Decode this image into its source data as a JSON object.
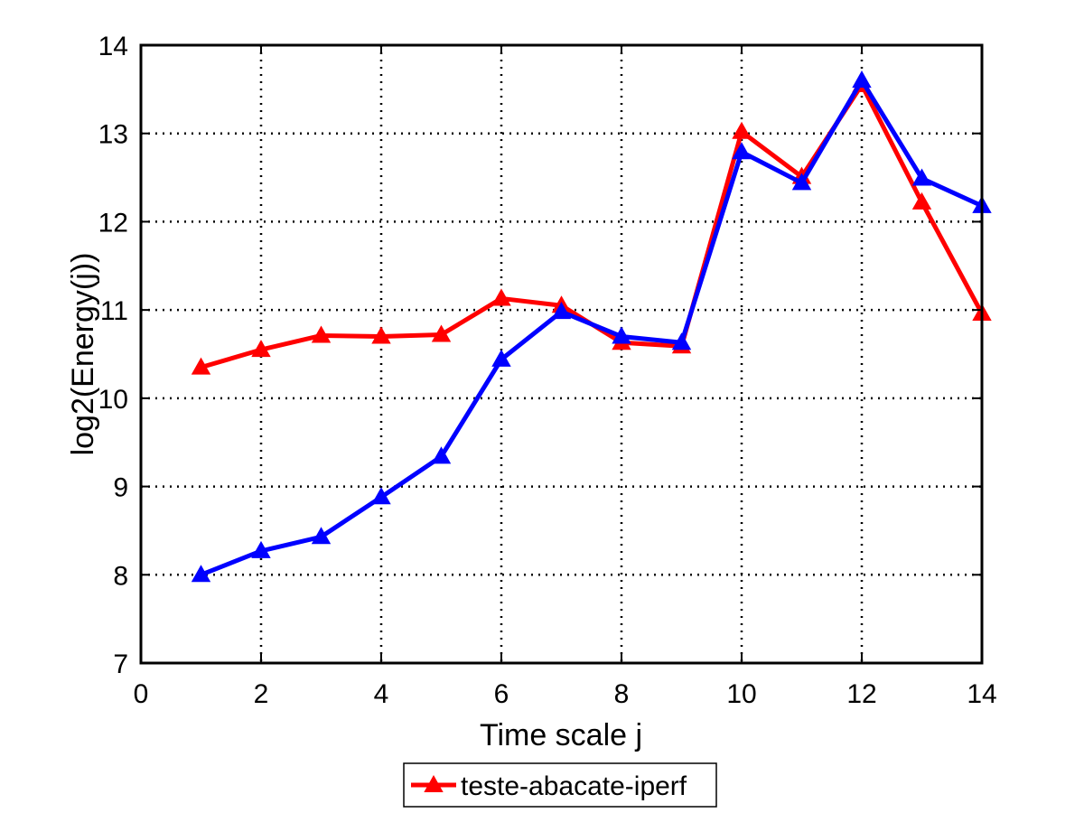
{
  "chart_data": {
    "type": "line",
    "title": "",
    "xlabel": "Time scale j",
    "ylabel": "log2(Energy(j))",
    "xlim": [
      0,
      14
    ],
    "ylim": [
      7,
      14
    ],
    "xticks": [
      0,
      2,
      4,
      6,
      8,
      10,
      12,
      14
    ],
    "yticks": [
      7,
      8,
      9,
      10,
      11,
      12,
      13,
      14
    ],
    "grid": true,
    "legend_position": "bottom-center",
    "x": [
      1,
      2,
      3,
      4,
      5,
      6,
      7,
      8,
      9,
      10,
      11,
      12,
      13,
      14
    ],
    "series": [
      {
        "name": "teste-abacate-iperf",
        "color": "#ff0000",
        "marker": "triangle",
        "values": [
          10.35,
          10.55,
          10.71,
          10.7,
          10.72,
          11.13,
          11.05,
          10.63,
          10.59,
          13.02,
          12.51,
          13.55,
          12.22,
          10.96
        ]
      },
      {
        "color": "#0000ff",
        "marker": "triangle",
        "values": [
          8.0,
          8.27,
          8.43,
          8.88,
          9.34,
          10.44,
          10.98,
          10.7,
          10.63,
          12.79,
          12.44,
          13.6,
          12.49,
          12.18
        ]
      }
    ]
  }
}
